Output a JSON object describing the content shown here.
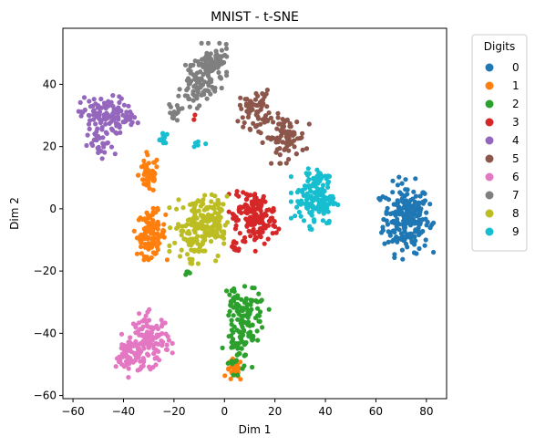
{
  "chart_data": {
    "type": "scatter",
    "title": "MNIST - t-SNE",
    "xlabel": "Dim 1",
    "ylabel": "Dim 2",
    "xlim": [
      -64,
      88
    ],
    "ylim": [
      -61,
      58
    ],
    "xticks": [
      -60,
      -40,
      -20,
      0,
      20,
      40,
      60,
      80
    ],
    "yticks": [
      -60,
      -40,
      -20,
      0,
      20,
      40
    ],
    "grid": false,
    "legend": {
      "title": "Digits",
      "placement": "outside-top-right"
    },
    "series": [
      {
        "name": "0",
        "color": "#1f77b4",
        "clusters": [
          {
            "cx": 72,
            "cy": -3,
            "sx": 4.5,
            "sy": 5.5,
            "n": 230
          }
        ]
      },
      {
        "name": "1",
        "color": "#ff7f0e",
        "clusters": [
          {
            "cx": -29,
            "cy": -8,
            "sx": 2.8,
            "sy": 3.5,
            "n": 110
          },
          {
            "cx": -30,
            "cy": 11,
            "sx": 2.0,
            "sy": 3.0,
            "n": 55
          },
          {
            "cx": 4,
            "cy": -52,
            "sx": 1.6,
            "sy": 1.8,
            "n": 28
          }
        ]
      },
      {
        "name": "2",
        "color": "#2ca02c",
        "clusters": [
          {
            "cx": 10,
            "cy": -35,
            "sx": 3.2,
            "sy": 4.0,
            "n": 80
          },
          {
            "cx": 5,
            "cy": -45,
            "sx": 2.5,
            "sy": 3.5,
            "n": 45
          },
          {
            "cx": 4,
            "cy": -30,
            "sx": 2.0,
            "sy": 2.5,
            "n": 30
          },
          {
            "cx": -15,
            "cy": -20.5,
            "sx": 1.0,
            "sy": 0.6,
            "n": 5
          }
        ]
      },
      {
        "name": "3",
        "color": "#d62728",
        "clusters": [
          {
            "cx": 13,
            "cy": -4,
            "sx": 4.0,
            "sy": 4.0,
            "n": 120
          },
          {
            "cx": 9,
            "cy": 2,
            "sx": 3.0,
            "sy": 2.5,
            "n": 40
          },
          {
            "cx": 4,
            "cy": -12,
            "sx": 1.5,
            "sy": 1.5,
            "n": 10
          },
          {
            "cx": -12,
            "cy": 29,
            "sx": 0.5,
            "sy": 0.5,
            "n": 2
          }
        ]
      },
      {
        "name": "4",
        "color": "#9467bd",
        "clusters": [
          {
            "cx": -48,
            "cy": 30,
            "sx": 4.5,
            "sy": 3.0,
            "n": 110
          },
          {
            "cx": -49,
            "cy": 20,
            "sx": 2.5,
            "sy": 2.5,
            "n": 30
          },
          {
            "cx": -37,
            "cy": 29,
            "sx": 2.5,
            "sy": 1.2,
            "n": 15
          }
        ]
      },
      {
        "name": "5",
        "color": "#8c564b",
        "clusters": [
          {
            "cx": 12,
            "cy": 32,
            "sx": 3.0,
            "sy": 3.0,
            "n": 60
          },
          {
            "cx": 24,
            "cy": 23,
            "sx": 4.0,
            "sy": 3.5,
            "n": 90
          }
        ]
      },
      {
        "name": "6",
        "color": "#e377c2",
        "clusters": [
          {
            "cx": -29,
            "cy": -42,
            "sx": 3.5,
            "sy": 4.0,
            "n": 110
          },
          {
            "cx": -38,
            "cy": -47,
            "sx": 2.5,
            "sy": 3.0,
            "n": 60
          }
        ]
      },
      {
        "name": "7",
        "color": "#7f7f7f",
        "clusters": [
          {
            "cx": -5,
            "cy": 46,
            "sx": 3.5,
            "sy": 3.0,
            "n": 90
          },
          {
            "cx": -11,
            "cy": 39,
            "sx": 3.0,
            "sy": 3.0,
            "n": 70
          },
          {
            "cx": -20,
            "cy": 31,
            "sx": 1.5,
            "sy": 1.5,
            "n": 15
          }
        ]
      },
      {
        "name": "8",
        "color": "#bcbd22",
        "clusters": [
          {
            "cx": -11,
            "cy": -6,
            "sx": 4.5,
            "sy": 5.0,
            "n": 150
          },
          {
            "cx": -4,
            "cy": -4,
            "sx": 2.5,
            "sy": 4.0,
            "n": 50
          },
          {
            "cx": -13,
            "cy": -17,
            "sx": 1.0,
            "sy": 1.0,
            "n": 5
          }
        ]
      },
      {
        "name": "9",
        "color": "#17becf",
        "clusters": [
          {
            "cx": 36,
            "cy": 3,
            "sx": 4.0,
            "sy": 4.0,
            "n": 130
          },
          {
            "cx": 38,
            "cy": 10,
            "sx": 2.5,
            "sy": 1.5,
            "n": 25
          },
          {
            "cx": -24,
            "cy": 22,
            "sx": 1.2,
            "sy": 1.5,
            "n": 12
          },
          {
            "cx": -10,
            "cy": 21,
            "sx": 1.2,
            "sy": 0.5,
            "n": 6
          }
        ]
      }
    ]
  }
}
